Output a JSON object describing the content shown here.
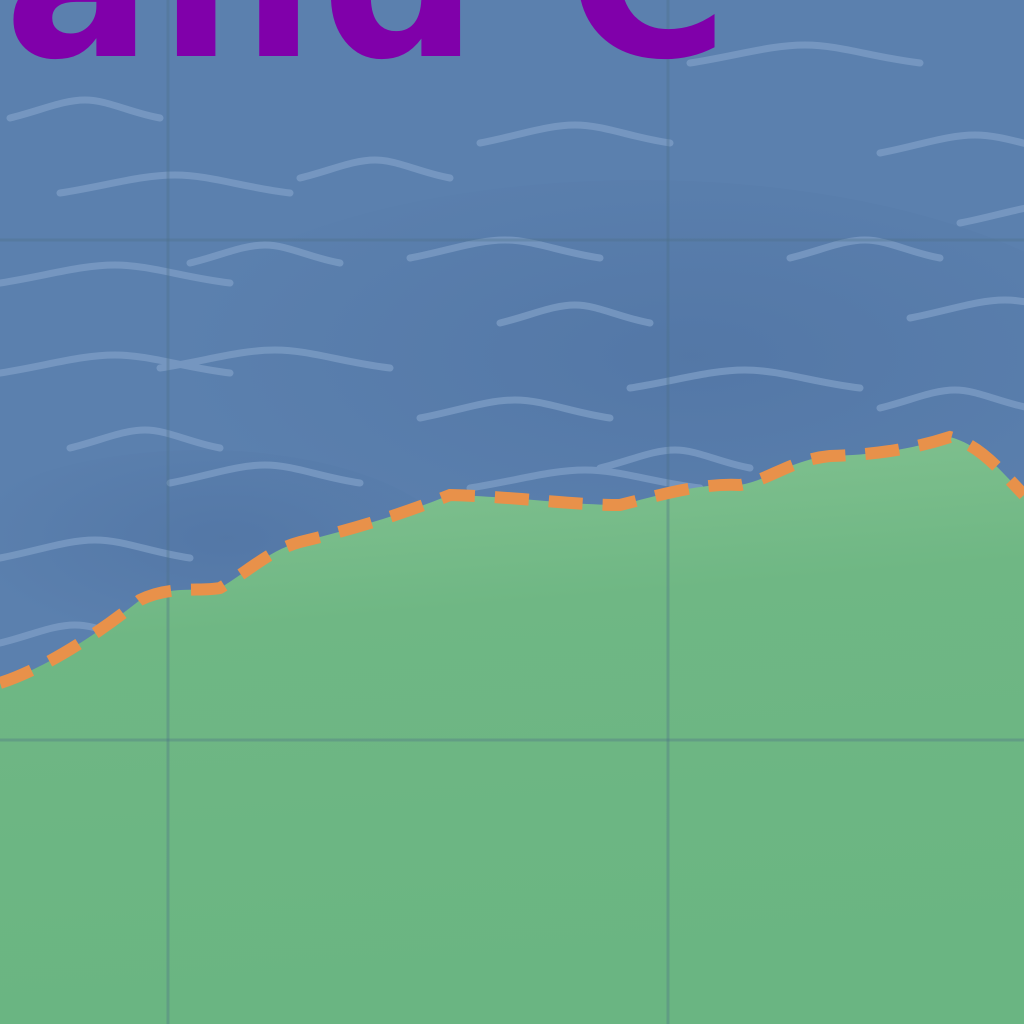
{
  "headline": {
    "visible_text": "and C",
    "color": "#8000aa"
  },
  "colors": {
    "water": "#5b80ae",
    "water_dark": "#4f72a0",
    "wave": "#7d9dc5",
    "land_top": "#84c291",
    "land_bottom": "#6bb583",
    "gridline": "#4a6a5a",
    "coastline": "#e8914a"
  },
  "icons": [
    "wave-icon"
  ],
  "coastline_style": "dashed"
}
